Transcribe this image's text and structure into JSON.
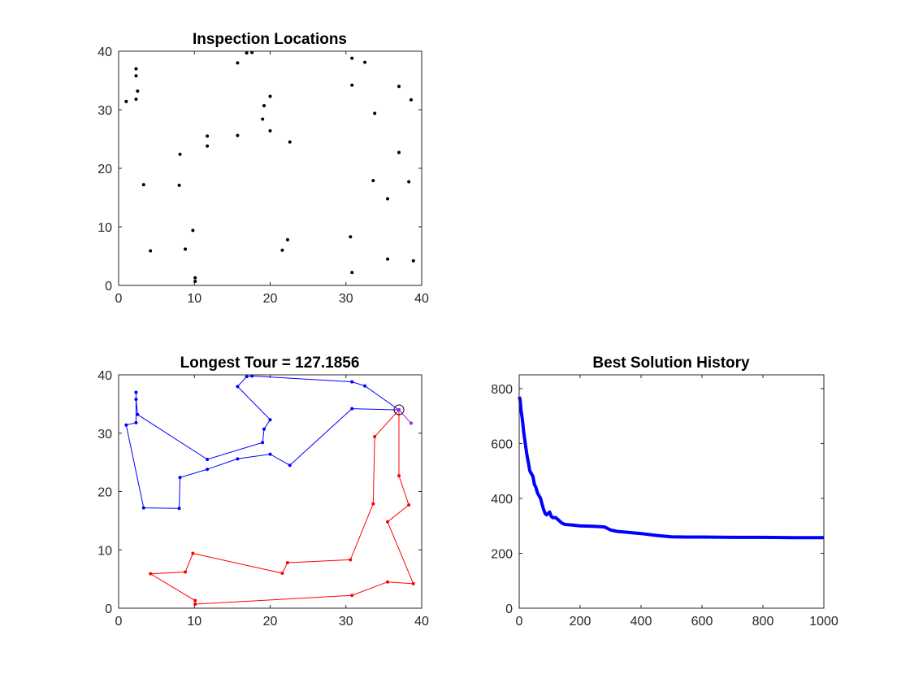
{
  "chart_data": [
    {
      "type": "scatter",
      "title": "Inspection Locations",
      "xlabel": "",
      "ylabel": "",
      "xlim": [
        0,
        40
      ],
      "ylim": [
        0,
        40
      ],
      "xticks": [
        0,
        10,
        20,
        30,
        40
      ],
      "yticks": [
        0,
        10,
        20,
        30,
        40
      ],
      "grid": false,
      "marker_color": "#000000",
      "points": [
        [
          1.0,
          31.4
        ],
        [
          2.3,
          37.0
        ],
        [
          2.3,
          35.8
        ],
        [
          2.5,
          33.2
        ],
        [
          2.3,
          31.8
        ],
        [
          3.3,
          17.2
        ],
        [
          4.2,
          5.9
        ],
        [
          8.1,
          22.4
        ],
        [
          8.0,
          17.1
        ],
        [
          8.8,
          6.2
        ],
        [
          9.8,
          9.4
        ],
        [
          10.1,
          1.3
        ],
        [
          10.1,
          0.7
        ],
        [
          11.7,
          25.5
        ],
        [
          11.7,
          23.8
        ],
        [
          15.7,
          38.0
        ],
        [
          15.7,
          25.6
        ],
        [
          16.9,
          39.7
        ],
        [
          17.6,
          39.8
        ],
        [
          19.0,
          28.4
        ],
        [
          19.2,
          30.7
        ],
        [
          20.0,
          32.3
        ],
        [
          20.0,
          26.4
        ],
        [
          21.6,
          6.0
        ],
        [
          22.3,
          7.8
        ],
        [
          22.6,
          24.5
        ],
        [
          30.8,
          38.8
        ],
        [
          30.8,
          34.2
        ],
        [
          30.6,
          8.3
        ],
        [
          30.8,
          2.2
        ],
        [
          32.5,
          38.1
        ],
        [
          33.6,
          17.9
        ],
        [
          33.8,
          29.4
        ],
        [
          35.5,
          14.8
        ],
        [
          35.5,
          4.5
        ],
        [
          37.0,
          34.0
        ],
        [
          37.0,
          22.7
        ],
        [
          38.3,
          17.7
        ],
        [
          38.6,
          31.7
        ],
        [
          38.9,
          4.2
        ]
      ]
    },
    {
      "type": "line",
      "title": "Longest Tour = 127.1856",
      "xlabel": "",
      "ylabel": "",
      "xlim": [
        0,
        40
      ],
      "ylim": [
        0,
        40
      ],
      "xticks": [
        0,
        10,
        20,
        30,
        40
      ],
      "yticks": [
        0,
        10,
        20,
        30,
        40
      ],
      "grid": false,
      "depot": [
        37.0,
        34.0
      ],
      "series": [
        {
          "color": "#0000ff",
          "points": [
            [
              37.0,
              34.0
            ],
            [
              32.5,
              38.1
            ],
            [
              30.8,
              38.8
            ],
            [
              17.6,
              39.8
            ],
            [
              16.9,
              39.7
            ],
            [
              15.7,
              38.0
            ],
            [
              20.0,
              32.3
            ],
            [
              19.2,
              30.7
            ],
            [
              19.0,
              28.4
            ],
            [
              11.7,
              25.5
            ],
            [
              2.5,
              33.2
            ],
            [
              2.3,
              35.8
            ],
            [
              2.3,
              37.0
            ],
            [
              2.3,
              31.8
            ],
            [
              1.0,
              31.4
            ],
            [
              3.3,
              17.2
            ],
            [
              8.0,
              17.1
            ],
            [
              8.1,
              22.4
            ],
            [
              11.7,
              23.8
            ],
            [
              15.7,
              25.6
            ],
            [
              20.0,
              26.4
            ],
            [
              22.6,
              24.5
            ],
            [
              30.8,
              34.2
            ],
            [
              37.0,
              34.0
            ]
          ]
        },
        {
          "color": "#ff0000",
          "points": [
            [
              37.0,
              34.0
            ],
            [
              33.8,
              29.4
            ],
            [
              33.6,
              17.9
            ],
            [
              30.6,
              8.3
            ],
            [
              22.3,
              7.8
            ],
            [
              21.6,
              6.0
            ],
            [
              9.8,
              9.4
            ],
            [
              8.8,
              6.2
            ],
            [
              4.2,
              5.9
            ],
            [
              10.1,
              1.3
            ],
            [
              10.1,
              0.7
            ],
            [
              30.8,
              2.2
            ],
            [
              35.5,
              4.5
            ],
            [
              38.9,
              4.2
            ],
            [
              35.5,
              14.8
            ],
            [
              38.3,
              17.7
            ],
            [
              37.0,
              22.7
            ],
            [
              37.0,
              34.0
            ]
          ]
        },
        {
          "color": "#a020f0",
          "points": [
            [
              37.0,
              34.0
            ],
            [
              38.6,
              31.7
            ],
            [
              37.0,
              34.0
            ]
          ]
        }
      ]
    },
    {
      "type": "line",
      "title": "Best Solution History",
      "xlabel": "",
      "ylabel": "",
      "xlim": [
        0,
        1000
      ],
      "ylim": [
        0,
        850
      ],
      "xticks": [
        0,
        200,
        400,
        600,
        800,
        1000
      ],
      "yticks": [
        0,
        200,
        400,
        600,
        800
      ],
      "grid": false,
      "series": [
        {
          "color": "#0000ff",
          "points": [
            [
              0,
              770
            ],
            [
              3,
              760
            ],
            [
              6,
              720
            ],
            [
              10,
              690
            ],
            [
              15,
              640
            ],
            [
              20,
              600
            ],
            [
              25,
              560
            ],
            [
              30,
              530
            ],
            [
              35,
              500
            ],
            [
              40,
              490
            ],
            [
              45,
              480
            ],
            [
              50,
              450
            ],
            [
              55,
              440
            ],
            [
              60,
              420
            ],
            [
              65,
              410
            ],
            [
              70,
              400
            ],
            [
              75,
              380
            ],
            [
              80,
              360
            ],
            [
              85,
              345
            ],
            [
              90,
              340
            ],
            [
              95,
              345
            ],
            [
              100,
              350
            ],
            [
              105,
              335
            ],
            [
              110,
              330
            ],
            [
              120,
              330
            ],
            [
              130,
              320
            ],
            [
              140,
              310
            ],
            [
              150,
              305
            ],
            [
              175,
              303
            ],
            [
              200,
              300
            ],
            [
              250,
              298
            ],
            [
              280,
              296
            ],
            [
              300,
              285
            ],
            [
              320,
              280
            ],
            [
              350,
              277
            ],
            [
              400,
              272
            ],
            [
              450,
              265
            ],
            [
              500,
              260
            ],
            [
              550,
              259
            ],
            [
              600,
              259
            ],
            [
              700,
              258
            ],
            [
              800,
              258
            ],
            [
              900,
              257
            ],
            [
              1000,
              257
            ]
          ]
        }
      ]
    }
  ]
}
